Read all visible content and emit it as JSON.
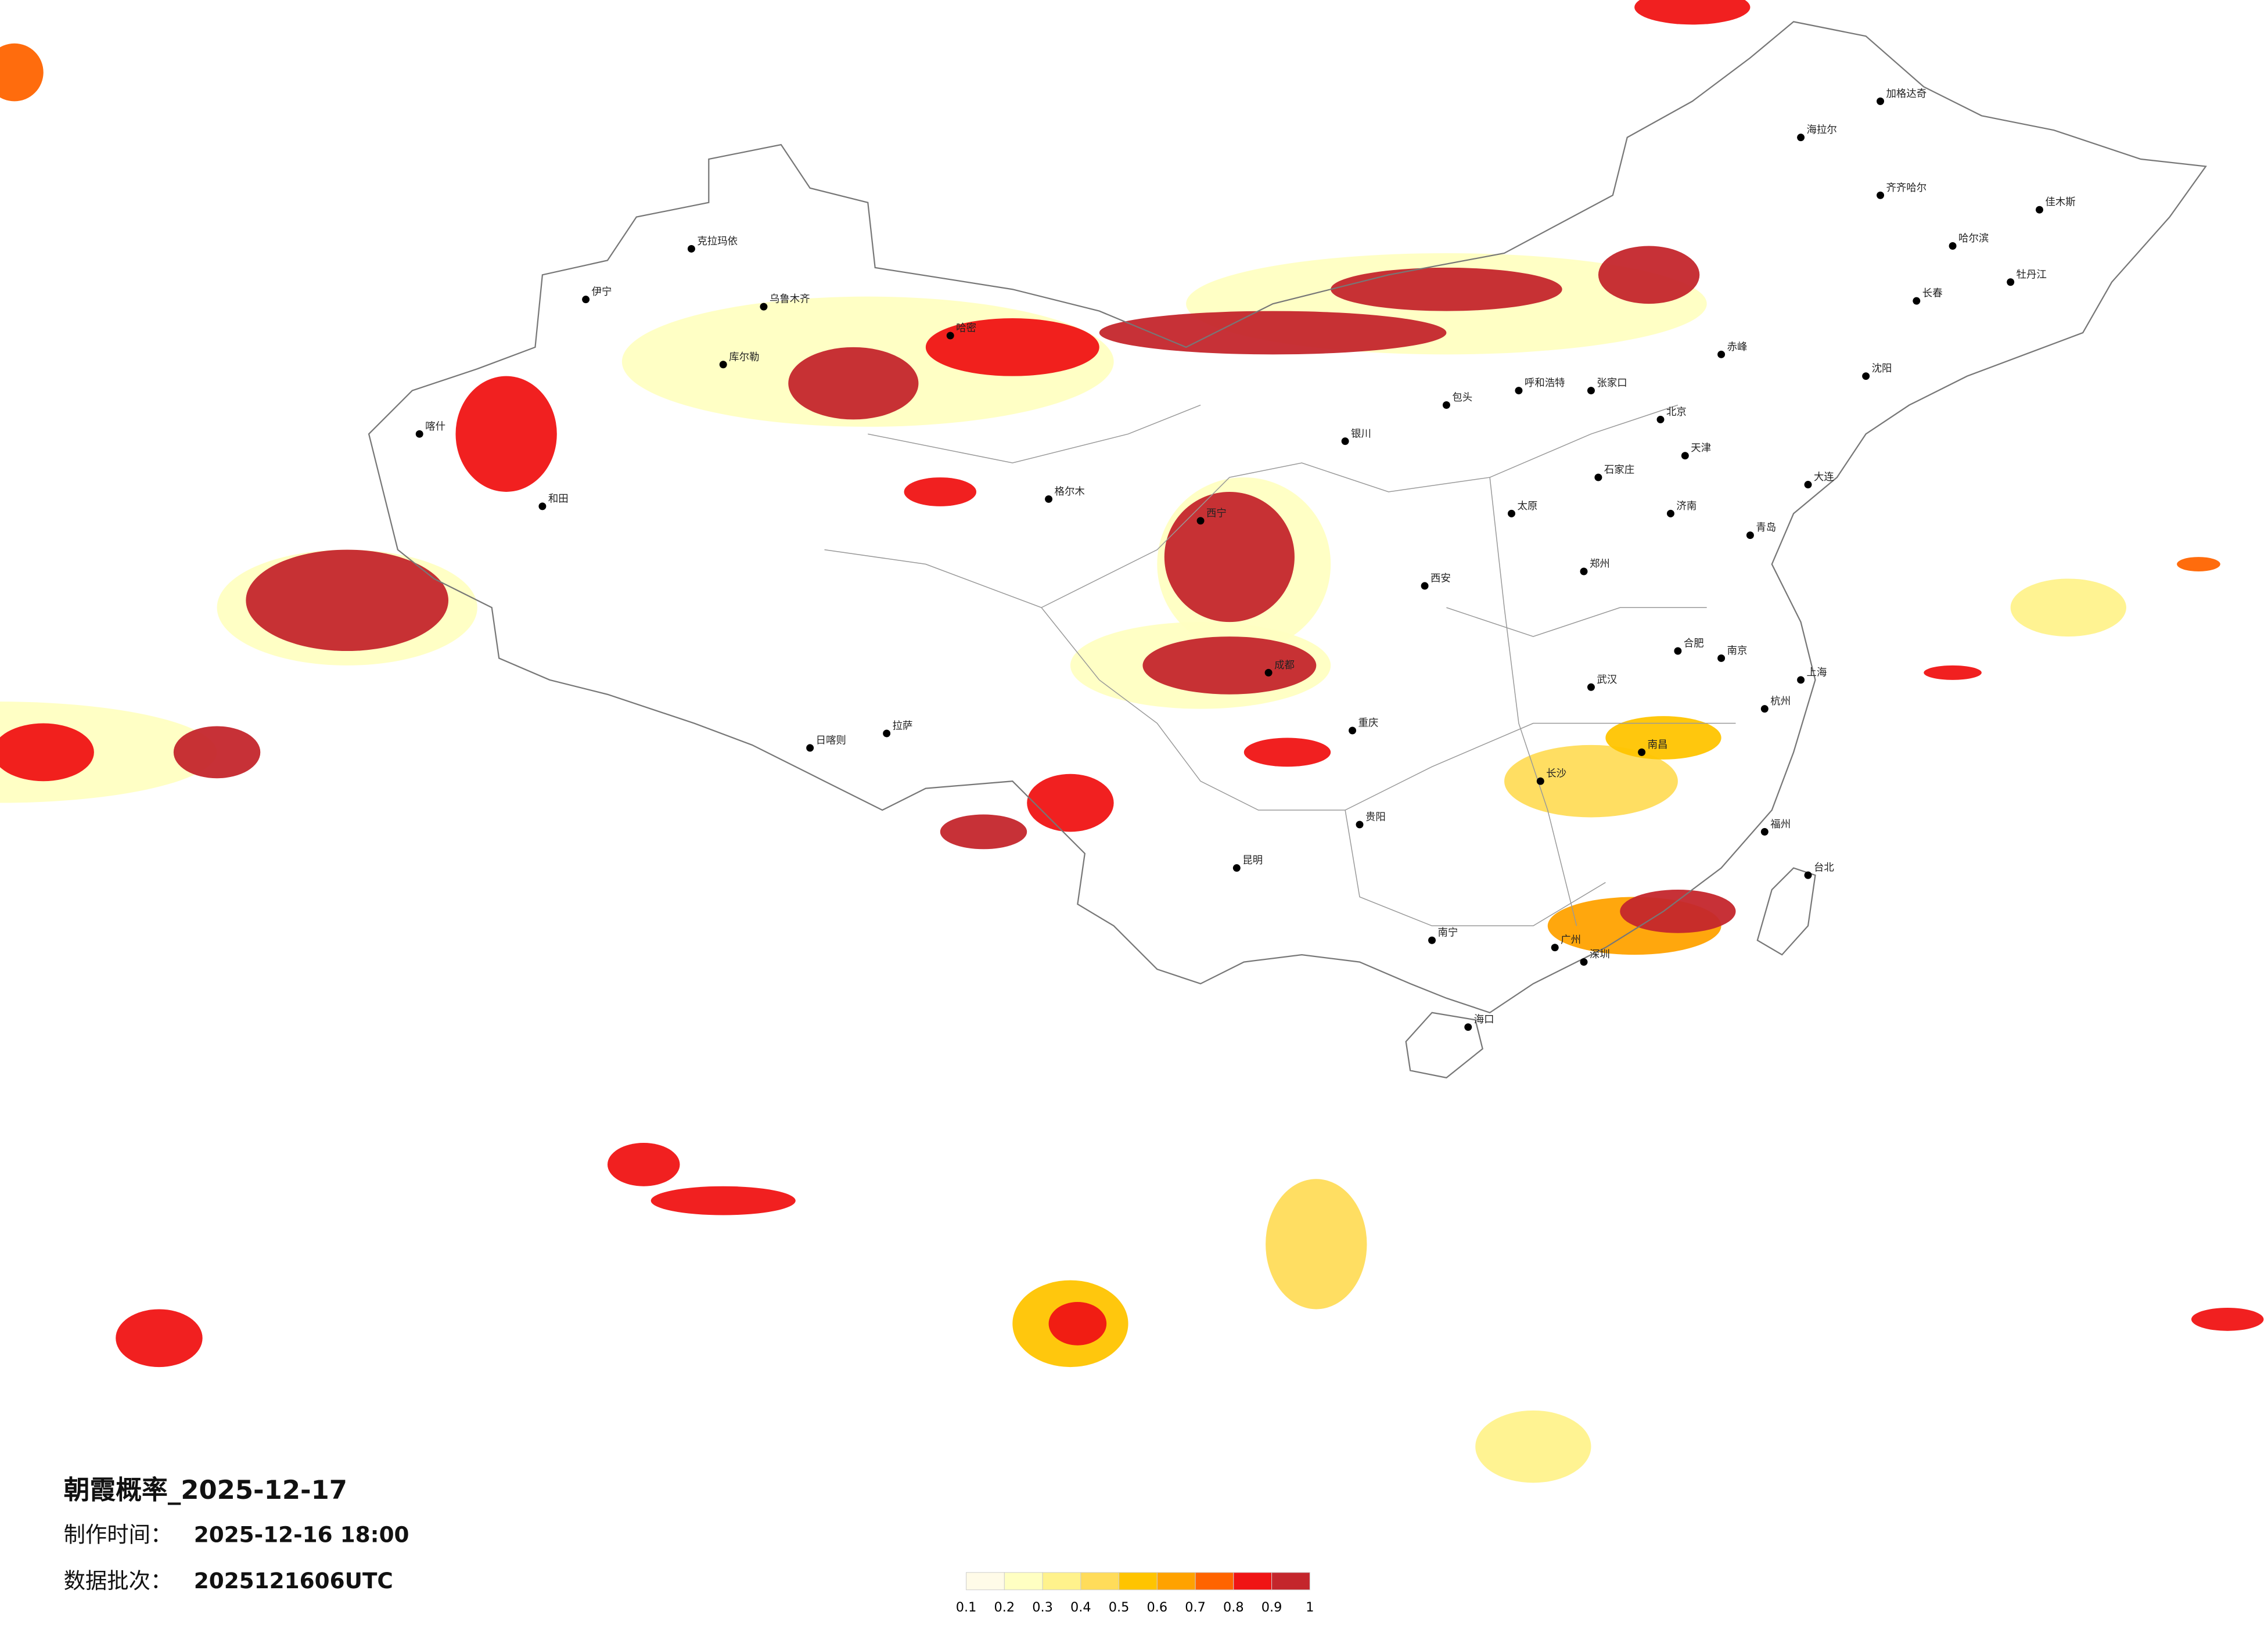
{
  "header": {
    "title": "朝霞概率_2025-12-17",
    "made_label": "制作时间：",
    "made_value": "2025-12-16 18:00",
    "batch_label": "数据批次：",
    "batch_value": "2025121606UTC"
  },
  "legend": {
    "colors": [
      "#fffbe8",
      "#ffffc2",
      "#fff28c",
      "#ffdc5a",
      "#ffc400",
      "#ffa200",
      "#ff6400",
      "#f01414",
      "#c4262c"
    ],
    "ticks": [
      0.1,
      0.2,
      0.3,
      0.4,
      0.5,
      0.6,
      0.7,
      0.8,
      0.9,
      1
    ]
  },
  "cities": [
    "北京",
    "天津",
    "石家庄",
    "上海",
    "广州",
    "深圳",
    "重庆",
    "成都",
    "西安",
    "西宁",
    "拉萨",
    "乌鲁木齐",
    "哈尔滨",
    "长春",
    "沈阳",
    "呼和浩特",
    "太原",
    "郑州",
    "武汉",
    "长沙",
    "南昌",
    "福州",
    "南宁",
    "昆明",
    "贵阳",
    "海口",
    "银川",
    "济南",
    "南京",
    "杭州",
    "合肥",
    "台北",
    "喀什",
    "和田",
    "日喀则",
    "伊宁",
    "克拉玛依",
    "库尔勒",
    "哈密",
    "格尔木",
    "大连",
    "青岛",
    "齐齐哈尔",
    "海拉尔",
    "加格达奇",
    "佳木斯",
    "牡丹江",
    "包头",
    "张家口",
    "赤峰"
  ]
}
